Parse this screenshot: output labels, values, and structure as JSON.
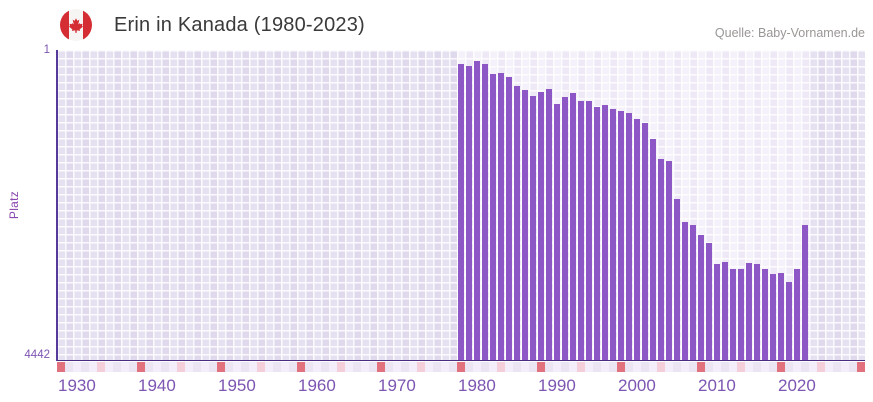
{
  "header": {
    "title": "Erin in Kanada (1980-2023)",
    "source": "Quelle: Baby-Vornamen.de",
    "flag_icon": "canada-flag-icon"
  },
  "chart_data": {
    "type": "bar",
    "title": "Erin in Kanada (1980-2023)",
    "xlabel": "",
    "ylabel": "Platz",
    "y_axis": {
      "top_label": "1",
      "bottom_label": "4442",
      "min": 1,
      "max": 4442,
      "inverted": true
    },
    "x_axis": {
      "min": 1930,
      "max": 2031,
      "tick_interval": 10,
      "ticks": [
        "1930",
        "1940",
        "1950",
        "1960",
        "1970",
        "1980",
        "1990",
        "2000",
        "2010",
        "2020"
      ],
      "decade_marker_years_end_in": 0,
      "half_decade_marker_years_end_in": 5
    },
    "highlight_range": [
      1980,
      2024
    ],
    "grid": true,
    "legend": false,
    "categories": [
      1980,
      1981,
      1982,
      1983,
      1984,
      1985,
      1986,
      1987,
      1988,
      1989,
      1990,
      1991,
      1992,
      1993,
      1994,
      1995,
      1996,
      1997,
      1998,
      1999,
      2000,
      2001,
      2002,
      2003,
      2004,
      2005,
      2006,
      2007,
      2008,
      2009,
      2010,
      2011,
      2012,
      2013,
      2014,
      2015,
      2016,
      2017,
      2018,
      2019,
      2020,
      2021,
      2022,
      2023
    ],
    "values": [
      205,
      235,
      165,
      205,
      345,
      330,
      390,
      520,
      580,
      665,
      600,
      565,
      770,
      675,
      620,
      735,
      735,
      820,
      790,
      850,
      870,
      910,
      995,
      1045,
      1275,
      1560,
      1585,
      2135,
      2465,
      2505,
      2655,
      2770,
      3060,
      3040,
      3135,
      3145,
      3055,
      3070,
      3140,
      3215,
      3195,
      3325,
      3145,
      2510
    ],
    "colors": {
      "bar": "#8d58c5",
      "axis": "#4b2c82",
      "tick_text": "#7d55b2",
      "plot_bg": "#e6e1f1",
      "plot_bg_highlight": "#f5f1fb",
      "strip_decade_red": "#e0717d",
      "strip_half_decade_pink": "#f4cfd9",
      "flag_red": "#d42e34"
    }
  }
}
